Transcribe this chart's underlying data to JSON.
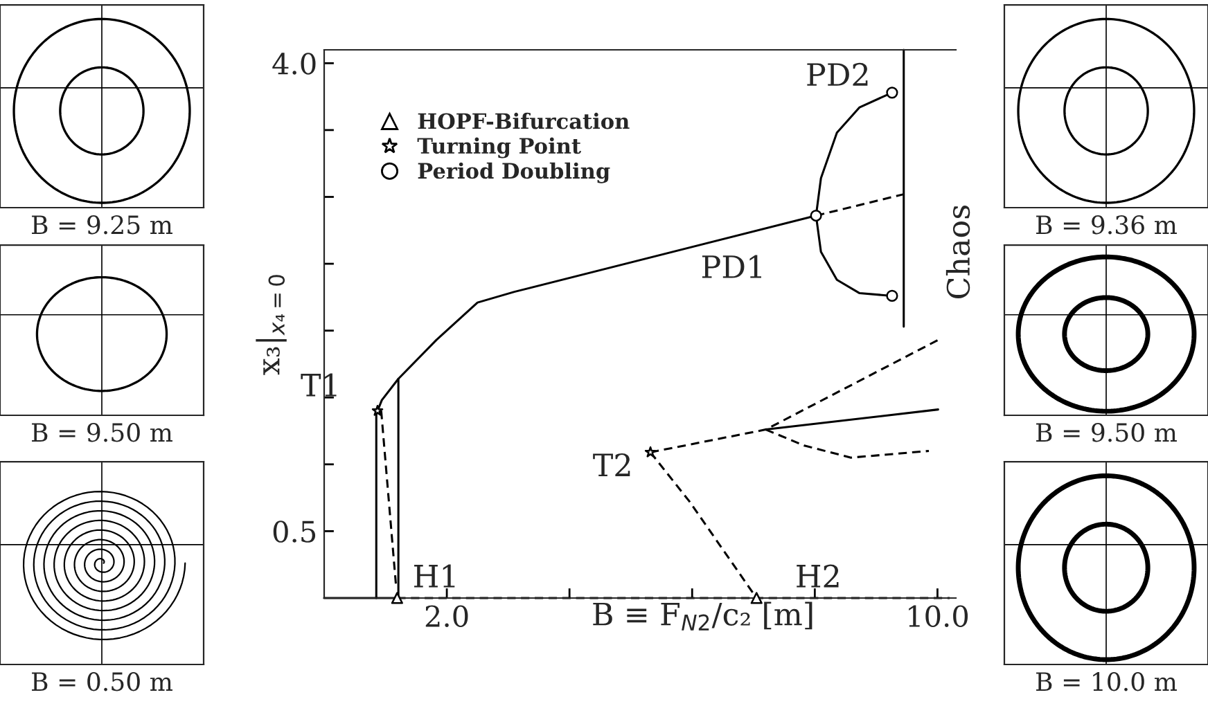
{
  "chart_data": {
    "type": "line",
    "xlabel": "B ≡ F$_{N2}$/c₂ [m]",
    "ylabel": "x₃|$_{x₄=0}$",
    "xlim": [
      0,
      10.3
    ],
    "ylim": [
      0,
      4.1
    ],
    "xticks": [
      {
        "value": 2,
        "label": "2.0"
      },
      {
        "value": 4,
        "label": null
      },
      {
        "value": 6,
        "label": null
      },
      {
        "value": 8,
        "label": null
      },
      {
        "value": 10,
        "label": "10.0"
      }
    ],
    "yticks": [
      {
        "value": 0.5,
        "label": "0.5"
      },
      {
        "value": 1.0,
        "label": null
      },
      {
        "value": 1.5,
        "label": null
      },
      {
        "value": 2.0,
        "label": null
      },
      {
        "value": 2.5,
        "label": null
      },
      {
        "value": 3.0,
        "label": null
      },
      {
        "value": 3.5,
        "label": null
      },
      {
        "value": 4.0,
        "label": "4.0"
      }
    ],
    "grid": false,
    "legend": "top left",
    "series": [
      {
        "line_style": "solid",
        "color": "#000000",
        "x": [
          0.0,
          1.19
        ],
        "values": [
          0,
          0
        ]
      },
      {
        "line_style": "dashed",
        "color": "#000000",
        "x": [
          1.19,
          10.2
        ],
        "values": [
          0,
          0
        ]
      },
      {
        "line_style": "solid",
        "color": "#000000",
        "x": [
          0.87,
          0.94,
          1.21,
          1.83,
          2.5,
          3.1,
          8.02
        ],
        "values": [
          1.4,
          1.48,
          1.64,
          1.93,
          2.21,
          2.29,
          2.86
        ]
      },
      {
        "line_style": "dashed",
        "color": "#000000",
        "x": [
          8.02,
          9.45
        ],
        "values": [
          2.86,
          3.02
        ]
      },
      {
        "line_style": "solid",
        "color": "#000000",
        "x": [
          1.21,
          1.21
        ],
        "values": [
          1.64,
          0
        ]
      },
      {
        "line_style": "solid",
        "color": "#000000",
        "x": [
          0.85,
          0.85
        ],
        "values": [
          1.4,
          0
        ]
      },
      {
        "line_style": "dashed",
        "color": "#000000",
        "x": [
          0.93,
          1.17
        ],
        "values": [
          1.4,
          0.1
        ]
      },
      {
        "line_style": "solid",
        "color": "#000000",
        "x": [
          8.02,
          8.1,
          8.36,
          8.73,
          9.26
        ],
        "values": [
          2.86,
          3.14,
          3.48,
          3.67,
          3.78
        ]
      },
      {
        "line_style": "solid",
        "color": "#000000",
        "x": [
          8.02,
          8.1,
          8.36,
          8.73,
          9.26
        ],
        "values": [
          2.86,
          2.59,
          2.38,
          2.28,
          2.26
        ]
      },
      {
        "line_style": "solid",
        "color": "#000000",
        "x": [
          9.45,
          9.45
        ],
        "values": [
          2.03,
          4.1
        ]
      },
      {
        "line_style": "dashed",
        "color": "#000000",
        "x": [
          5.32,
          7.2,
          10.01
        ],
        "values": [
          1.09,
          1.26,
          1.93
        ]
      },
      {
        "line_style": "solid",
        "color": "#000000",
        "x": [
          7.2,
          10.01
        ],
        "values": [
          1.26,
          1.41
        ]
      },
      {
        "line_style": "dashed",
        "color": "#000000",
        "x": [
          7.2,
          7.83,
          8.59,
          9.86
        ],
        "values": [
          1.26,
          1.14,
          1.05,
          1.1
        ]
      },
      {
        "line_style": "dashed",
        "color": "#000000",
        "x": [
          5.32,
          5.96,
          7.05
        ],
        "values": [
          1.09,
          0.72,
          0
        ]
      },
      {
        "type": "scatter",
        "name": "HOPF-Bifurcation",
        "marker": "triangle",
        "color": "#000000",
        "x": [
          1.19,
          7.05
        ],
        "values": [
          0,
          0
        ]
      },
      {
        "type": "scatter",
        "name": "Turning Point",
        "marker": "star",
        "color": "#000000",
        "x": [
          0.87,
          5.32
        ],
        "values": [
          1.4,
          1.09
        ]
      },
      {
        "type": "scatter",
        "name": "Period Doubling",
        "marker": "circle",
        "color": "#000000",
        "x": [
          8.02,
          9.26,
          9.26
        ],
        "values": [
          2.86,
          3.78,
          2.26
        ]
      }
    ],
    "annotations": [
      {
        "text": "T1",
        "x": 0.87,
        "y": 1.4
      },
      {
        "text": "T2",
        "x": 5.32,
        "y": 1.09
      },
      {
        "text": "H1",
        "x": 1.19,
        "y": 0
      },
      {
        "text": "H2",
        "x": 7.05,
        "y": 0
      },
      {
        "text": "PD1",
        "x": 8.02,
        "y": 2.86
      },
      {
        "text": "PD2",
        "x": 9.26,
        "y": 3.78
      },
      {
        "text": "Chaos",
        "x": 9.45,
        "y": 2.76
      },
      "B = 9.25 m",
      "B = 9.50 m",
      "B = 0.50 m",
      "B = 9.36 m",
      "B = 9.50 m",
      "B = 10.0 m"
    ]
  }
}
